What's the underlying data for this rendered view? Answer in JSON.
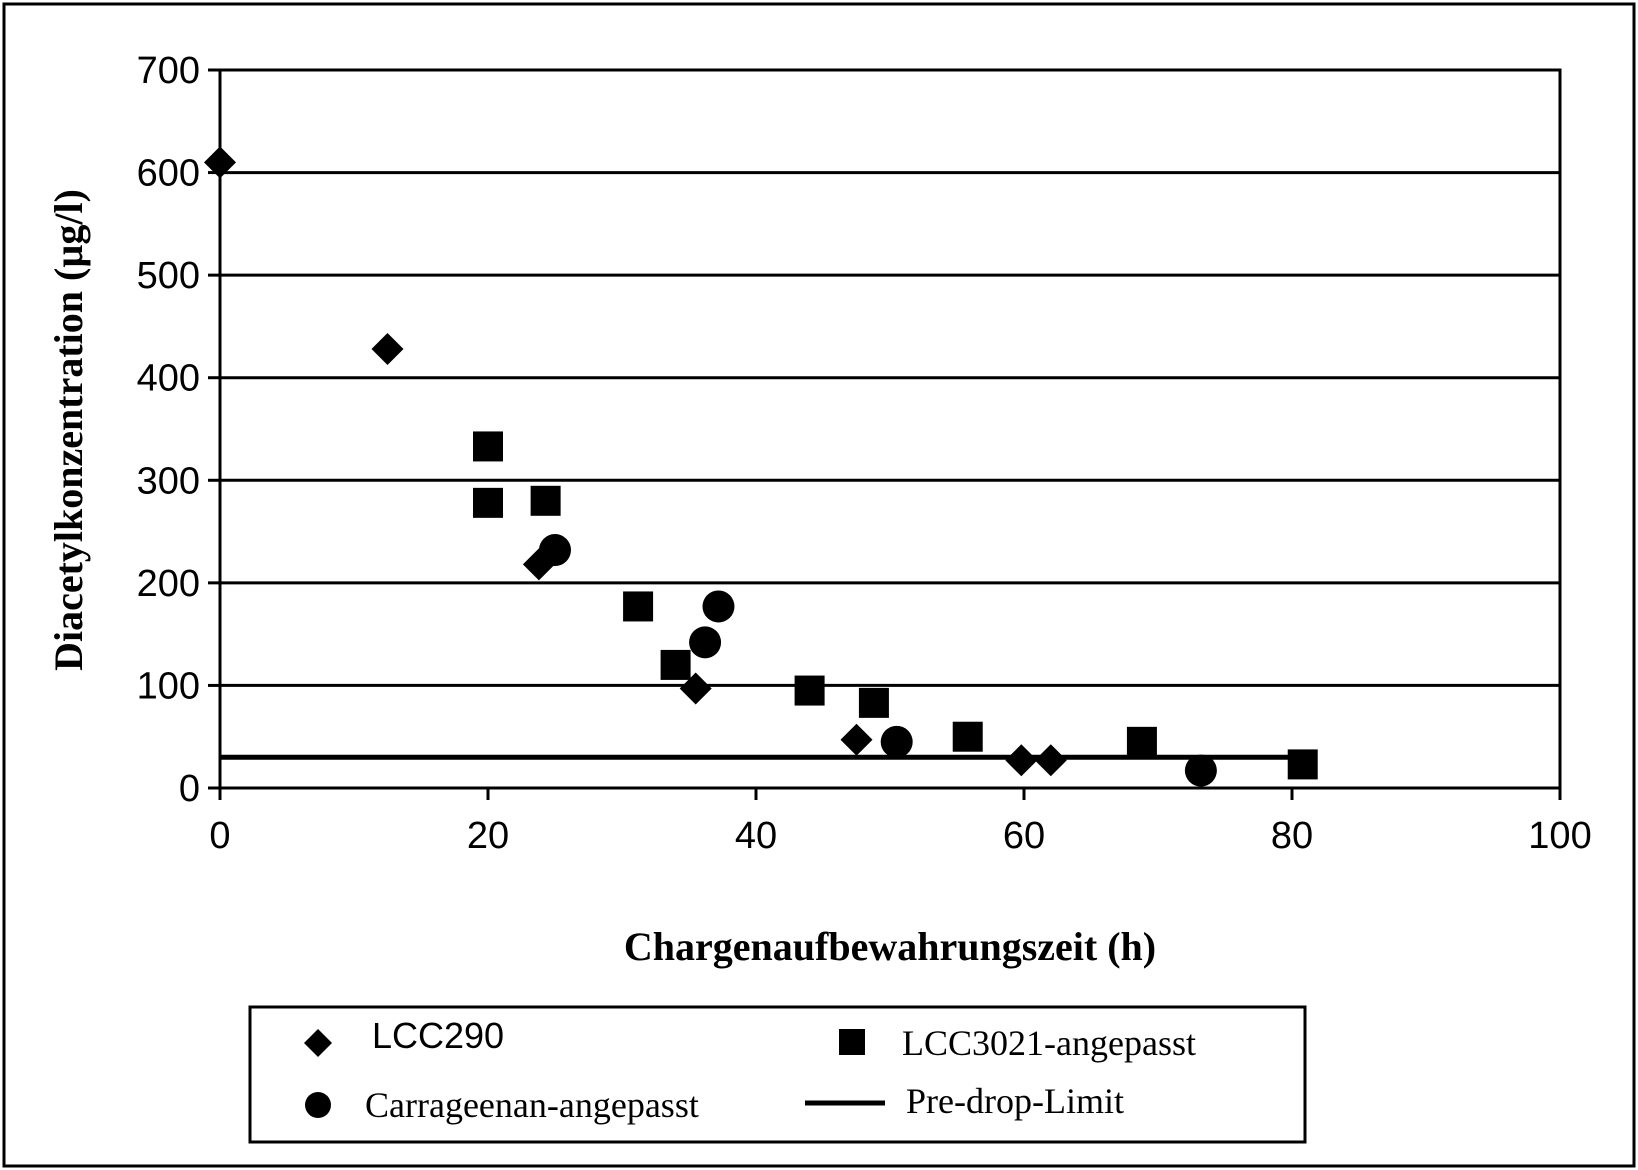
{
  "chart_data": {
    "type": "scatter",
    "xlabel": "Chargenaufbewahrungszeit (h)",
    "ylabel": "Diacetylkonzentration (µg/l)",
    "xlim": [
      0,
      100
    ],
    "ylim": [
      0,
      700
    ],
    "x_ticks": [
      "0",
      "20",
      "40",
      "60",
      "80",
      "100"
    ],
    "y_ticks": [
      "0",
      "100",
      "200",
      "300",
      "400",
      "500",
      "600",
      "700"
    ],
    "grid": "horizontal",
    "legend_position": "bottom",
    "series": [
      {
        "name": "LCC290",
        "marker": "diamond",
        "color": "#000000",
        "points": [
          {
            "x": 0,
            "y": 610
          },
          {
            "x": 12.5,
            "y": 428
          },
          {
            "x": 23.8,
            "y": 218
          },
          {
            "x": 35.5,
            "y": 97
          },
          {
            "x": 47.5,
            "y": 47
          },
          {
            "x": 59.8,
            "y": 27
          },
          {
            "x": 62.0,
            "y": 27
          }
        ]
      },
      {
        "name": "LCC3021-angepasst",
        "marker": "square",
        "color": "#000000",
        "points": [
          {
            "x": 20.0,
            "y": 333
          },
          {
            "x": 20.0,
            "y": 278
          },
          {
            "x": 24.3,
            "y": 280
          },
          {
            "x": 31.2,
            "y": 177
          },
          {
            "x": 34.0,
            "y": 120
          },
          {
            "x": 44.0,
            "y": 95
          },
          {
            "x": 48.8,
            "y": 83
          },
          {
            "x": 55.8,
            "y": 50
          },
          {
            "x": 68.8,
            "y": 45
          },
          {
            "x": 80.8,
            "y": 23
          }
        ]
      },
      {
        "name": "Carrageenan-angepasst",
        "marker": "circle",
        "color": "#000000",
        "points": [
          {
            "x": 25.0,
            "y": 232
          },
          {
            "x": 36.2,
            "y": 142
          },
          {
            "x": 37.2,
            "y": 177
          },
          {
            "x": 50.5,
            "y": 45
          },
          {
            "x": 73.2,
            "y": 17
          }
        ]
      }
    ],
    "reference_line": {
      "name": "Pre-drop-Limit",
      "y": 30,
      "x_range": [
        0,
        81
      ]
    }
  }
}
